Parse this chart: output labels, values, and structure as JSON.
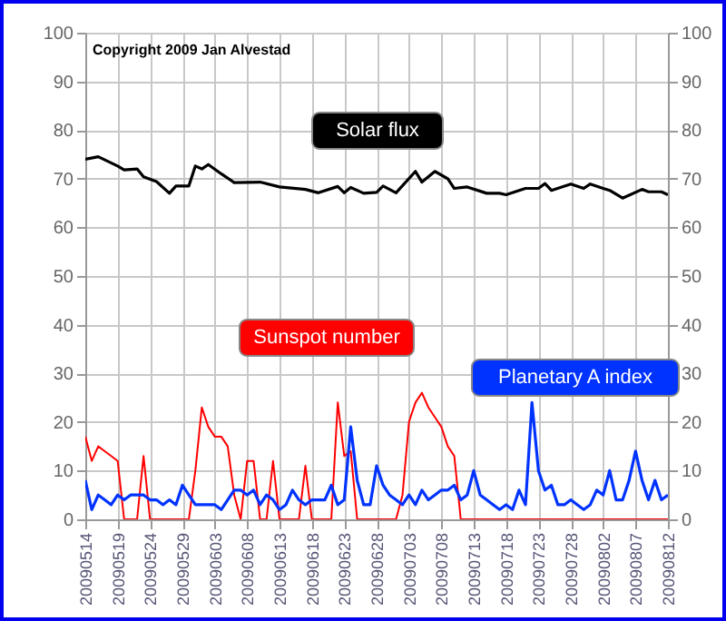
{
  "chart_data": {
    "type": "line",
    "annotations": [
      "Copyright 2009 Jan Alvestad"
    ],
    "x": [
      "2009-05-14",
      "2009-05-15",
      "2009-05-16",
      "2009-05-17",
      "2009-05-18",
      "2009-05-19",
      "2009-05-20",
      "2009-05-21",
      "2009-05-22",
      "2009-05-23",
      "2009-05-24",
      "2009-05-25",
      "2009-05-26",
      "2009-05-27",
      "2009-05-28",
      "2009-05-29",
      "2009-05-30",
      "2009-05-31",
      "2009-06-01",
      "2009-06-02",
      "2009-06-03",
      "2009-06-04",
      "2009-06-05",
      "2009-06-06",
      "2009-06-07",
      "2009-06-08",
      "2009-06-09",
      "2009-06-10",
      "2009-06-11",
      "2009-06-12",
      "2009-06-13",
      "2009-06-14",
      "2009-06-15",
      "2009-06-16",
      "2009-06-17",
      "2009-06-18",
      "2009-06-19",
      "2009-06-20",
      "2009-06-21",
      "2009-06-22",
      "2009-06-23",
      "2009-06-24",
      "2009-06-25",
      "2009-06-26",
      "2009-06-27",
      "2009-06-28",
      "2009-06-29",
      "2009-06-30",
      "2009-07-01",
      "2009-07-02",
      "2009-07-03",
      "2009-07-04",
      "2009-07-05",
      "2009-07-06",
      "2009-07-07",
      "2009-07-08",
      "2009-07-09",
      "2009-07-10",
      "2009-07-11",
      "2009-07-12",
      "2009-07-13",
      "2009-07-14",
      "2009-07-15",
      "2009-07-16",
      "2009-07-17",
      "2009-07-18",
      "2009-07-19",
      "2009-07-20",
      "2009-07-21",
      "2009-07-22",
      "2009-07-23",
      "2009-07-24",
      "2009-07-25",
      "2009-07-26",
      "2009-07-27",
      "2009-07-28",
      "2009-07-29",
      "2009-07-30",
      "2009-07-31",
      "2009-08-01",
      "2009-08-02",
      "2009-08-03",
      "2009-08-04",
      "2009-08-05",
      "2009-08-06",
      "2009-08-07",
      "2009-08-08",
      "2009-08-09",
      "2009-08-10",
      "2009-08-11",
      "2009-08-12"
    ],
    "series": [
      {
        "name": "Solar flux",
        "color": "#000000",
        "x": [
          "2009-05-14",
          "2009-05-16",
          "2009-05-19",
          "2009-05-20",
          "2009-05-22",
          "2009-05-23",
          "2009-05-25",
          "2009-05-27",
          "2009-05-28",
          "2009-05-30",
          "2009-05-31",
          "2009-06-01",
          "2009-06-02",
          "2009-06-04",
          "2009-06-06",
          "2009-06-10",
          "2009-06-13",
          "2009-06-17",
          "2009-06-19",
          "2009-06-22",
          "2009-06-23",
          "2009-06-24",
          "2009-06-26",
          "2009-06-28",
          "2009-06-29",
          "2009-07-01",
          "2009-07-04",
          "2009-07-05",
          "2009-07-07",
          "2009-07-09",
          "2009-07-10",
          "2009-07-12",
          "2009-07-15",
          "2009-07-17",
          "2009-07-18",
          "2009-07-21",
          "2009-07-23",
          "2009-07-24",
          "2009-07-25",
          "2009-07-28",
          "2009-07-30",
          "2009-07-31",
          "2009-08-02",
          "2009-08-03",
          "2009-08-05",
          "2009-08-08",
          "2009-08-09",
          "2009-08-11",
          "2009-08-12"
        ],
        "values": [
          74,
          74.5,
          72.6,
          71.8,
          72,
          70.4,
          69.4,
          67,
          68.5,
          68.5,
          72.6,
          72,
          72.9,
          71,
          69.2,
          69.3,
          68.3,
          67.8,
          67.1,
          68.4,
          67.1,
          68.2,
          67,
          67.2,
          68.5,
          67.1,
          71.5,
          69.3,
          71.5,
          70,
          68,
          68.3,
          67,
          67,
          66.7,
          68,
          68,
          69,
          67.6,
          68.9,
          68,
          68.9,
          68,
          67.6,
          66,
          67.8,
          67.3,
          67.3,
          66.7
        ]
      },
      {
        "name": "Sunspot number",
        "color": "#ff0000",
        "x": [
          "2009-05-14",
          "2009-05-15",
          "2009-05-16",
          "2009-05-17",
          "2009-05-18",
          "2009-05-19",
          "2009-05-20",
          "2009-05-22",
          "2009-05-23",
          "2009-05-24",
          "2009-05-30",
          "2009-05-31",
          "2009-06-01",
          "2009-06-02",
          "2009-06-03",
          "2009-06-04",
          "2009-06-05",
          "2009-06-06",
          "2009-06-07",
          "2009-06-08",
          "2009-06-09",
          "2009-06-10",
          "2009-06-11",
          "2009-06-12",
          "2009-06-13",
          "2009-06-16",
          "2009-06-17",
          "2009-06-18",
          "2009-06-21",
          "2009-06-22",
          "2009-06-23",
          "2009-06-24",
          "2009-06-25",
          "2009-07-01",
          "2009-07-02",
          "2009-07-03",
          "2009-07-04",
          "2009-07-05",
          "2009-07-06",
          "2009-07-07",
          "2009-07-08",
          "2009-07-09",
          "2009-07-10",
          "2009-07-11",
          "2009-08-12"
        ],
        "values": [
          17,
          12,
          15,
          14,
          13,
          12,
          0,
          0,
          13,
          0,
          0,
          10,
          23,
          19,
          17,
          17,
          15,
          5,
          0,
          12,
          12,
          0,
          0,
          12,
          0,
          0,
          11,
          0,
          0,
          24,
          13,
          14,
          0,
          0,
          5,
          20,
          24,
          26,
          23,
          21,
          19,
          15,
          13,
          0,
          0
        ]
      },
      {
        "name": "Planetary A index",
        "color": "#0033ff",
        "values": [
          8,
          2,
          5,
          4,
          3,
          5,
          4,
          5,
          5,
          5,
          4,
          4,
          3,
          4,
          3,
          7,
          5,
          3,
          3,
          3,
          3,
          2,
          4,
          6,
          6,
          5,
          6,
          3,
          5,
          4,
          2,
          3,
          6,
          4,
          3,
          4,
          4,
          4,
          7,
          3,
          4,
          19,
          8,
          3,
          3,
          11,
          7,
          5,
          4,
          3,
          5,
          3,
          6,
          4,
          5,
          6,
          6,
          7,
          4,
          5,
          10,
          5,
          4,
          3,
          2,
          3,
          2,
          6,
          3,
          24,
          10,
          6,
          7,
          3,
          3,
          4,
          3,
          2,
          3,
          6,
          5,
          10,
          4,
          4,
          8,
          14,
          8,
          4,
          8,
          4,
          5
        ]
      }
    ],
    "xlim": [
      "2009-05-14",
      "2009-08-12"
    ],
    "xticks": [
      {
        "value": "2009-05-14",
        "label": "20090514"
      },
      {
        "value": "2009-05-19",
        "label": "20090519"
      },
      {
        "value": "2009-05-24",
        "label": "20090524"
      },
      {
        "value": "2009-05-29",
        "label": "20090529"
      },
      {
        "value": "2009-06-03",
        "label": "20090603"
      },
      {
        "value": "2009-06-08",
        "label": "20090608"
      },
      {
        "value": "2009-06-13",
        "label": "20090613"
      },
      {
        "value": "2009-06-18",
        "label": "20090618"
      },
      {
        "value": "2009-06-23",
        "label": "20090623"
      },
      {
        "value": "2009-06-28",
        "label": "20090628"
      },
      {
        "value": "2009-07-03",
        "label": "20090703"
      },
      {
        "value": "2009-07-08",
        "label": "20090708"
      },
      {
        "value": "2009-07-13",
        "label": "20090713"
      },
      {
        "value": "2009-07-18",
        "label": "20090718"
      },
      {
        "value": "2009-07-23",
        "label": "20090723"
      },
      {
        "value": "2009-07-28",
        "label": "20090728"
      },
      {
        "value": "2009-08-02",
        "label": "20090802"
      },
      {
        "value": "2009-08-07",
        "label": "20090807"
      },
      {
        "value": "2009-08-12",
        "label": "20090812"
      }
    ],
    "ylim": [
      0,
      100
    ],
    "yticks": [
      0,
      10,
      20,
      30,
      40,
      50,
      60,
      70,
      80,
      90,
      100
    ],
    "y2lim": [
      0,
      100
    ],
    "y2ticks": [
      0,
      10,
      20,
      30,
      40,
      50,
      60,
      70,
      80,
      90,
      100
    ],
    "grid": true
  }
}
